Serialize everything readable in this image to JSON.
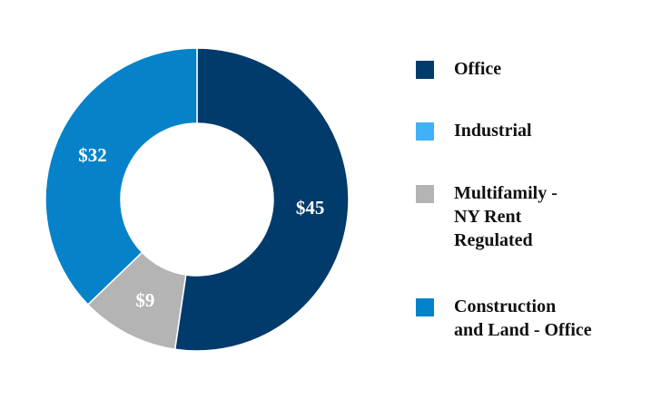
{
  "chart_data": {
    "type": "pie",
    "variant": "donut",
    "title": "",
    "categories": [
      "Office",
      "Industrial",
      "Multifamily -\nNY Rent\nRegulated",
      "Construction\nand Land - Office"
    ],
    "values": [
      45,
      0,
      9,
      32
    ],
    "data_labels": [
      "$45",
      "",
      "$9",
      "$32"
    ],
    "colors": [
      "#003b6b",
      "#41b0f5",
      "#b4b4b4",
      "#0582c9"
    ],
    "legend_position": "right",
    "start_angle_deg": 0,
    "direction": "clockwise"
  }
}
